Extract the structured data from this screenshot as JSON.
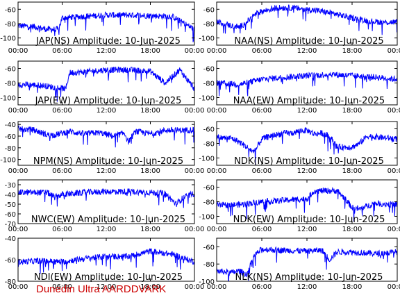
{
  "footer": {
    "text": "Dunedin Ultra AARDDVARK",
    "color": "#cc0000"
  },
  "colors": {
    "trace": "#0000ff",
    "frame": "#000000",
    "background": "#ffffff"
  },
  "chart_data": [
    {
      "type": "line",
      "title": "JAP(NS) Amplitude: 10-Jun-2025",
      "x_ticks": [
        "00:00",
        "06:00",
        "12:00",
        "18:00",
        "00:00"
      ],
      "xlim": [
        "00:00",
        "24:00"
      ],
      "ylim": [
        -110,
        -50
      ],
      "y_ticks": [
        -100,
        -80,
        -60
      ],
      "series": [
        {
          "hours": [
            0,
            2,
            4,
            5.5,
            6,
            9,
            12,
            15,
            18,
            21,
            24
          ],
          "values": [
            -83,
            -84,
            -88,
            -88,
            -72,
            -70,
            -68,
            -68,
            -69,
            -70,
            -88
          ]
        }
      ]
    },
    {
      "type": "line",
      "title": "JAP(EW) Amplitude: 10-Jun-2025",
      "x_ticks": [
        "00:00",
        "06:00",
        "12:00",
        "18:00",
        "00:00"
      ],
      "xlim": [
        "00:00",
        "24:00"
      ],
      "ylim": [
        -110,
        -50
      ],
      "y_ticks": [
        -100,
        -80,
        -60
      ],
      "series": [
        {
          "hours": [
            0,
            3,
            6.5,
            7,
            9,
            12,
            15,
            18,
            20,
            22,
            24
          ],
          "values": [
            -82,
            -83,
            -88,
            -66,
            -65,
            -62,
            -62,
            -64,
            -80,
            -62,
            -88
          ]
        }
      ]
    },
    {
      "type": "line",
      "title": "NPM(NS) Amplitude: 10-Jun-2025",
      "x_ticks": [
        "00:00",
        "06:00",
        "12:00",
        "18:00",
        "00:00"
      ],
      "xlim": [
        "00:00",
        "24:00"
      ],
      "ylim": [
        -110,
        -35
      ],
      "y_ticks": [
        -100,
        -80,
        -60,
        -40
      ],
      "series": [
        {
          "hours": [
            0,
            2,
            4,
            5,
            7,
            9,
            11,
            13,
            14.5,
            15,
            16,
            18,
            20,
            22,
            24
          ],
          "values": [
            -48,
            -49,
            -58,
            -58,
            -52,
            -56,
            -54,
            -60,
            -55,
            -70,
            -52,
            -56,
            -50,
            -50,
            -49
          ]
        }
      ]
    },
    {
      "type": "line",
      "title": "NWC(EW) Amplitude: 10-Jun-2025",
      "x_ticks": [
        "00:00",
        "06:00",
        "12:00",
        "18:00",
        "00:00"
      ],
      "xlim": [
        "00:00",
        "24:00"
      ],
      "ylim": [
        -70,
        -25
      ],
      "y_ticks": [
        -70,
        -60,
        -50,
        -40,
        -30
      ],
      "series": [
        {
          "hours": [
            0,
            2,
            4,
            5,
            6,
            9,
            12,
            15,
            18,
            20,
            21.5,
            22.5,
            24
          ],
          "values": [
            -38,
            -38,
            -38,
            -43,
            -40,
            -38,
            -37,
            -37,
            -38,
            -39,
            -50,
            -43,
            -39
          ]
        }
      ]
    },
    {
      "type": "line",
      "title": "NDI(EW) Amplitude: 10-Jun-2025",
      "x_ticks": [
        "00:00",
        "06:00",
        "12:00",
        "18:00",
        "00:00"
      ],
      "xlim": [
        "00:00",
        "24:00"
      ],
      "ylim": [
        -80,
        -40
      ],
      "y_ticks": [
        -80,
        -60,
        -40
      ],
      "series": [
        {
          "hours": [
            0,
            3,
            6,
            9,
            12,
            15,
            18,
            19,
            21,
            24
          ],
          "values": [
            -62,
            -61,
            -62,
            -59,
            -57,
            -57,
            -52,
            -53,
            -55,
            -62
          ]
        }
      ]
    },
    {
      "type": "line",
      "title": "NAA(NS) Amplitude: 10-Jun-2025",
      "x_ticks": [
        "00:00",
        "06:00",
        "12:00",
        "18:00",
        "00:00"
      ],
      "xlim": [
        "00:00",
        "24:00"
      ],
      "ylim": [
        -110,
        -50
      ],
      "y_ticks": [
        -100,
        -80,
        -60
      ],
      "series": [
        {
          "hours": [
            0,
            2,
            3,
            4,
            5,
            6,
            8,
            10,
            12,
            14,
            16,
            18,
            20,
            22,
            24
          ],
          "values": [
            -77,
            -83,
            -85,
            -78,
            -68,
            -63,
            -58,
            -58,
            -60,
            -63,
            -67,
            -72,
            -76,
            -78,
            -78
          ]
        }
      ]
    },
    {
      "type": "line",
      "title": "NAA(EW) Amplitude: 10-Jun-2025",
      "x_ticks": [
        "00:00",
        "06:00",
        "12:00",
        "18:00",
        "00:00"
      ],
      "xlim": [
        "00:00",
        "24:00"
      ],
      "ylim": [
        -110,
        -50
      ],
      "y_ticks": [
        -100,
        -80,
        -60
      ],
      "series": [
        {
          "hours": [
            0,
            3,
            6,
            9,
            12,
            15,
            18,
            21,
            24
          ],
          "values": [
            -80,
            -82,
            -75,
            -72,
            -70,
            -68,
            -70,
            -72,
            -75
          ]
        }
      ]
    },
    {
      "type": "line",
      "title": "NDK(NS) Amplitude: 10-Jun-2025",
      "x_ticks": [
        "00:00",
        "06:00",
        "12:00",
        "18:00",
        "00:00"
      ],
      "xlim": [
        "00:00",
        "24:00"
      ],
      "ylim": [
        -110,
        -50
      ],
      "y_ticks": [
        -100,
        -80,
        -60
      ],
      "series": [
        {
          "hours": [
            0,
            2,
            3,
            4,
            5,
            6,
            7,
            9,
            10,
            11,
            12,
            13,
            14,
            15,
            16,
            17,
            18,
            19,
            20,
            22,
            24
          ],
          "values": [
            -72,
            -73,
            -78,
            -85,
            -92,
            -74,
            -70,
            -66,
            -66,
            -63,
            -62,
            -67,
            -66,
            -70,
            -85,
            -85,
            -85,
            -80,
            -70,
            -72,
            -74
          ]
        }
      ]
    },
    {
      "type": "line",
      "title": "NDK(EW) Amplitude: 10-Jun-2025",
      "x_ticks": [
        "00:00",
        "06:00",
        "12:00",
        "18:00",
        "00:00"
      ],
      "xlim": [
        "00:00",
        "24:00"
      ],
      "ylim": [
        -110,
        -50
      ],
      "y_ticks": [
        -100,
        -80,
        -60
      ],
      "series": [
        {
          "hours": [
            0,
            3,
            6,
            9,
            12,
            13,
            15,
            16,
            17,
            18,
            19,
            21,
            24
          ],
          "values": [
            -85,
            -84,
            -80,
            -78,
            -76,
            -65,
            -65,
            -65,
            -75,
            -88,
            -90,
            -82,
            -84
          ]
        }
      ]
    },
    {
      "type": "line",
      "title": "NLK(NS) Amplitude: 10-Jun-2025",
      "x_ticks": [
        "00:00",
        "06:00",
        "12:00",
        "18:00",
        "00:00"
      ],
      "xlim": [
        "00:00",
        "24:00"
      ],
      "ylim": [
        -100,
        -50
      ],
      "y_ticks": [
        -100,
        -80,
        -60
      ],
      "series": [
        {
          "hours": [
            0,
            2,
            3,
            4,
            5,
            6,
            9,
            12,
            14,
            15,
            16,
            18,
            21,
            24
          ],
          "values": [
            -88,
            -90,
            -88,
            -92,
            -70,
            -63,
            -64,
            -65,
            -64,
            -75,
            -66,
            -66,
            -68,
            -66
          ]
        }
      ]
    }
  ]
}
